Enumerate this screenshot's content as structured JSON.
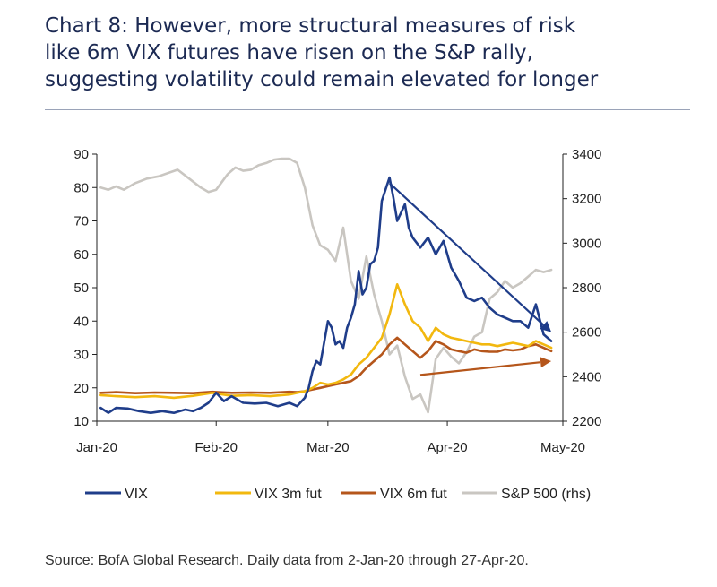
{
  "title_lines": [
    "Chart 8: However, more structural measures of risk",
    "like 6m VIX futures have risen on the S&P rally,",
    "suggesting volatility could remain elevated for longer"
  ],
  "source": "Source: BofA Global Research. Daily data from 2-Jan-20 through 27-Apr-20.",
  "chart_data": {
    "type": "line",
    "title": "Chart 8: However, more structural measures of risk like 6m VIX futures have risen on the S&P rally, suggesting volatility could remain elevated for longer",
    "x_range": [
      0,
      121
    ],
    "x_ticks": [
      {
        "label": "Jan-20",
        "pos": 0
      },
      {
        "label": "Feb-20",
        "pos": 31
      },
      {
        "label": "Mar-20",
        "pos": 60
      },
      {
        "label": "Apr-20",
        "pos": 91
      },
      {
        "label": "May-20",
        "pos": 121
      }
    ],
    "y_left": {
      "range": [
        10,
        90
      ],
      "ticks": [
        10,
        20,
        30,
        40,
        50,
        60,
        70,
        80,
        90
      ]
    },
    "y_right": {
      "range": [
        2200,
        3400
      ],
      "ticks": [
        2200,
        2400,
        2600,
        2800,
        3000,
        3200,
        3400
      ]
    },
    "legend_position": "bottom",
    "colors": {
      "vix": "#1f3d8a",
      "vix3m": "#f2b80f",
      "vix6m": "#b5561b",
      "spx": "#c9c6c1"
    },
    "series": [
      {
        "key": "spx",
        "name": "S&P 500 (rhs)",
        "axis": "right",
        "color": "#c9c6c1",
        "x": [
          1,
          3,
          5,
          7,
          10,
          13,
          16,
          21,
          24,
          27,
          29,
          31,
          34,
          36,
          38,
          40,
          42,
          44,
          46,
          48,
          50,
          52,
          54,
          56,
          58,
          60,
          62,
          64,
          66,
          68,
          70,
          72,
          74,
          76,
          78,
          80,
          82,
          84,
          86,
          88,
          90,
          92,
          94,
          96,
          98,
          100,
          102,
          104,
          106,
          108,
          110,
          112,
          114,
          116,
          118
        ],
        "y": [
          3250,
          3240,
          3255,
          3240,
          3270,
          3290,
          3300,
          3330,
          3290,
          3250,
          3230,
          3240,
          3310,
          3340,
          3325,
          3330,
          3350,
          3360,
          3375,
          3380,
          3380,
          3360,
          3250,
          3080,
          2990,
          2970,
          2920,
          3070,
          2830,
          2750,
          2940,
          2770,
          2650,
          2500,
          2540,
          2400,
          2300,
          2320,
          2240,
          2480,
          2530,
          2490,
          2460,
          2510,
          2580,
          2600,
          2750,
          2780,
          2830,
          2800,
          2820,
          2850,
          2880,
          2870,
          2880
        ]
      },
      {
        "key": "vix6m",
        "name": "VIX 6m fut",
        "axis": "left",
        "color": "#b5561b",
        "x": [
          1,
          5,
          10,
          15,
          20,
          25,
          30,
          35,
          40,
          45,
          50,
          52,
          54,
          56,
          58,
          60,
          62,
          64,
          66,
          68,
          70,
          72,
          74,
          76,
          78,
          80,
          82,
          84,
          86,
          88,
          90,
          92,
          94,
          96,
          98,
          100,
          102,
          104,
          106,
          108,
          110,
          112,
          114,
          116,
          118
        ],
        "y": [
          18.5,
          18.7,
          18.4,
          18.6,
          18.5,
          18.4,
          18.8,
          18.5,
          18.6,
          18.5,
          18.8,
          18.7,
          19,
          19.5,
          20,
          20.5,
          21,
          21.5,
          22,
          23.5,
          26,
          28,
          30,
          33,
          35,
          33,
          31,
          29,
          31,
          34,
          33,
          31.5,
          31,
          30.5,
          31.5,
          31,
          30.8,
          30.8,
          31.5,
          31.2,
          31.5,
          32.5,
          33,
          32,
          31
        ]
      },
      {
        "key": "vix3m",
        "name": "VIX 3m fut",
        "axis": "left",
        "color": "#f2b80f",
        "x": [
          1,
          5,
          10,
          15,
          20,
          25,
          30,
          35,
          40,
          45,
          50,
          52,
          54,
          56,
          58,
          60,
          62,
          64,
          66,
          68,
          70,
          72,
          74,
          76,
          78,
          80,
          82,
          84,
          86,
          88,
          90,
          92,
          94,
          96,
          98,
          100,
          102,
          104,
          106,
          108,
          110,
          112,
          114,
          116,
          118
        ],
        "y": [
          17.8,
          17.5,
          17.2,
          17.5,
          17.0,
          17.6,
          18.5,
          17.6,
          17.8,
          17.5,
          18,
          18.5,
          19,
          20,
          21.5,
          21,
          21.5,
          22.5,
          24,
          27,
          29,
          32,
          35,
          42,
          51,
          45,
          40,
          38,
          34,
          38,
          36,
          35,
          34.5,
          34,
          33.5,
          33,
          33,
          32.5,
          33,
          33.5,
          33,
          32.5,
          34,
          33,
          32
        ]
      },
      {
        "key": "vix",
        "name": "VIX",
        "axis": "left",
        "color": "#1f3d8a",
        "x": [
          1,
          3,
          5,
          8,
          11,
          14,
          17,
          20,
          23,
          25,
          27,
          29,
          31,
          33,
          35,
          38,
          41,
          44,
          47,
          50,
          52,
          54,
          55,
          56,
          57,
          58,
          60,
          61,
          62,
          63,
          64,
          65,
          66,
          67,
          68,
          69,
          70,
          71,
          72,
          73,
          74,
          76,
          77,
          78,
          80,
          81,
          82,
          84,
          86,
          88,
          90,
          92,
          94,
          96,
          98,
          100,
          102,
          104,
          106,
          108,
          110,
          112,
          114,
          116,
          118
        ],
        "y": [
          14,
          12.5,
          14,
          13.8,
          13,
          12.5,
          13,
          12.5,
          13.5,
          13,
          14,
          15.5,
          18.5,
          16,
          17.5,
          15.5,
          15.3,
          15.5,
          14.5,
          15.5,
          14.5,
          17,
          20,
          25,
          28,
          27,
          40,
          38,
          33,
          34,
          32,
          38,
          41,
          45,
          55,
          48,
          50,
          57,
          58,
          62,
          76,
          83,
          77,
          70,
          75,
          68,
          65,
          62,
          65,
          60,
          64,
          56,
          52,
          47,
          46,
          47,
          44,
          42,
          41,
          40,
          40,
          38,
          45,
          36,
          34
        ]
      }
    ],
    "annotations": [
      {
        "kind": "arrow",
        "color": "#1f3d8a",
        "from": [
          76,
          3270
        ],
        "to": [
          118,
          2600
        ]
      },
      {
        "kind": "arrow",
        "color": "#b5561b",
        "from": [
          84,
          2408
        ],
        "to": [
          118,
          2470
        ]
      }
    ]
  },
  "legend": [
    {
      "label": "VIX",
      "color": "#1f3d8a"
    },
    {
      "label": "VIX 3m fut",
      "color": "#f2b80f"
    },
    {
      "label": "VIX 6m fut",
      "color": "#b5561b"
    },
    {
      "label": "S&P 500 (rhs)",
      "color": "#c9c6c1"
    }
  ]
}
